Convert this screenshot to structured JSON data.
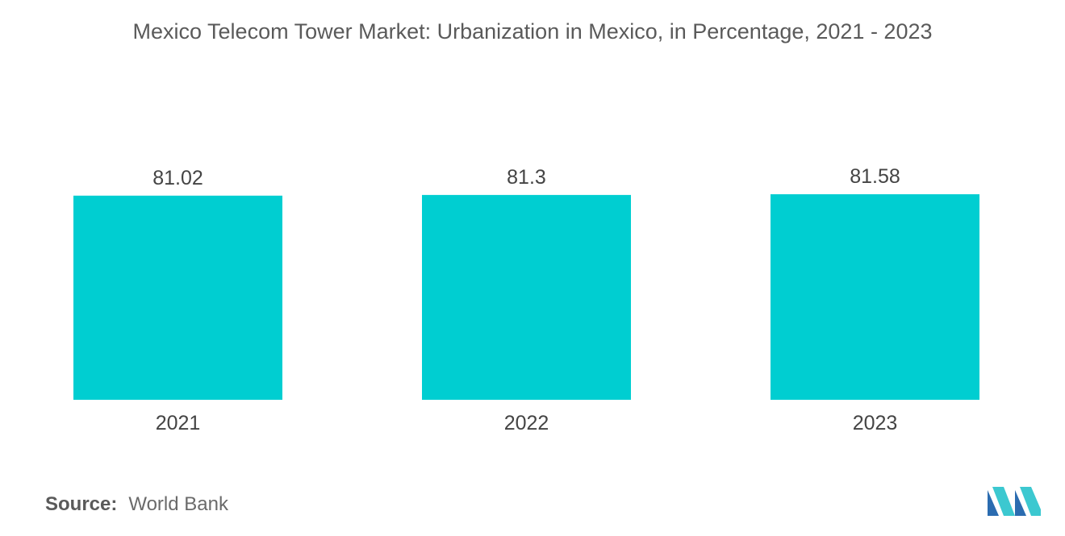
{
  "title": "Mexico Telecom Tower Market: Urbanization in Mexico, in Percentage, 2021 - 2023",
  "source": {
    "label": "Source:",
    "value": "World Bank"
  },
  "colors": {
    "bar": "#00CED1",
    "value_label": "#444444",
    "tick_label": "#444444",
    "logo_dark": "#2b6cb0",
    "logo_light": "#3cc8d0"
  },
  "logo": {
    "icon": "mordor-intelligence-logo-icon"
  },
  "chart_data": {
    "type": "bar",
    "categories": [
      "2021",
      "2022",
      "2023"
    ],
    "values": [
      81.02,
      81.3,
      81.58
    ],
    "value_labels": [
      "81.02",
      "81.3",
      "81.58"
    ],
    "title": "Mexico Telecom Tower Market: Urbanization in Mexico, in Percentage, 2021 - 2023",
    "xlabel": "",
    "ylabel": "",
    "ylim": [
      0,
      81.58
    ],
    "grid": false,
    "legend": "none"
  }
}
